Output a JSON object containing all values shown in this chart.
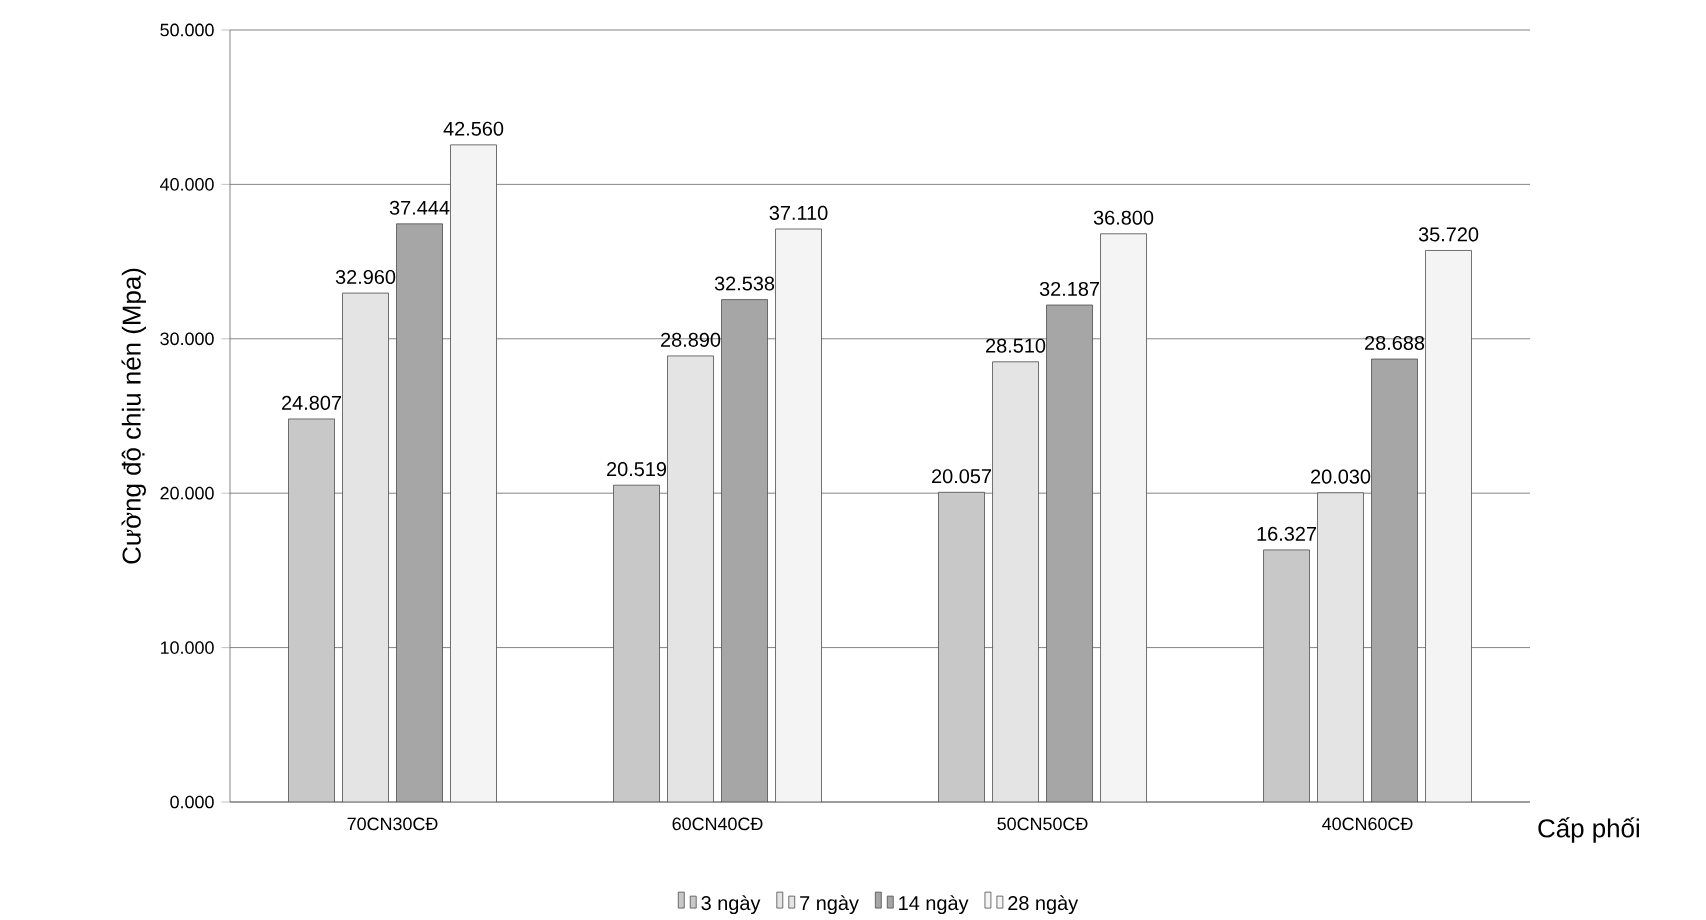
{
  "chart_data": {
    "type": "bar",
    "xlabel": "Cấp phối",
    "ylabel": "Cường độ chịu nén (Mpa)",
    "categories": [
      "70CN30CĐ",
      "60CN40CĐ",
      "50CN50CĐ",
      "40CN60CĐ"
    ],
    "series": [
      {
        "name": "3 ngày",
        "color": "#c8c8c8",
        "values": [
          24.807,
          20.519,
          20.057,
          16.327
        ],
        "value_labels": [
          "24.807",
          "20.519",
          "20.057",
          "16.327"
        ]
      },
      {
        "name": "7 ngày",
        "color": "#e4e4e4",
        "values": [
          32.96,
          28.89,
          28.51,
          20.03
        ],
        "value_labels": [
          "32.960",
          "28.890",
          "28.510",
          "20.030"
        ]
      },
      {
        "name": "14 ngày",
        "color": "#a6a6a6",
        "values": [
          37.444,
          32.538,
          32.187,
          28.688
        ],
        "value_labels": [
          "37.444",
          "32.538",
          "32.187",
          "28.688"
        ]
      },
      {
        "name": "28 ngày",
        "color": "#f4f4f4",
        "values": [
          42.56,
          37.11,
          36.8,
          35.72
        ],
        "value_labels": [
          "42.560",
          "37.110",
          "36.800",
          "35.720"
        ]
      }
    ],
    "ylim": [
      0,
      50
    ],
    "yticks": [
      {
        "value": 0,
        "label": "0.000"
      },
      {
        "value": 10,
        "label": "10.000"
      },
      {
        "value": 20,
        "label": "20.000"
      },
      {
        "value": 30,
        "label": "30.000"
      },
      {
        "value": 40,
        "label": "40.000"
      },
      {
        "value": 50,
        "label": "50.000"
      }
    ],
    "grid": "y",
    "legend": "bottom"
  }
}
